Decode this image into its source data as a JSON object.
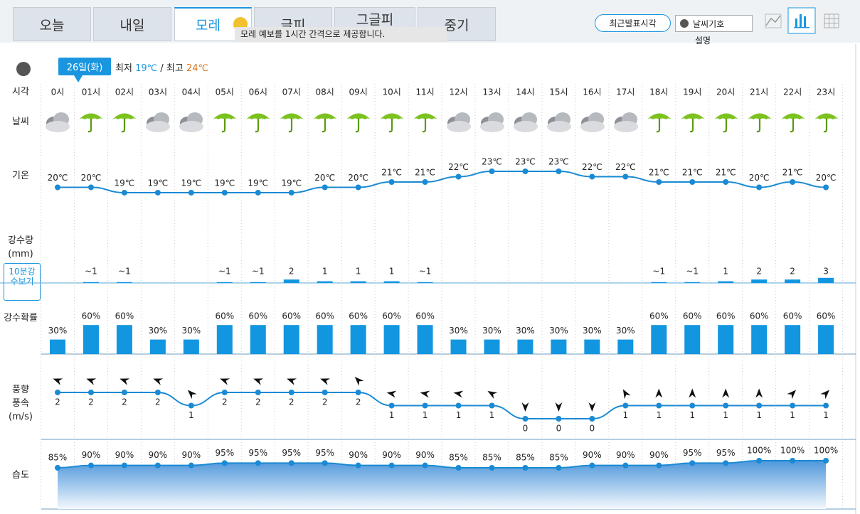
{
  "tabs": [
    "오늘",
    "내일",
    "모레",
    "글피",
    "그글피",
    "중기"
  ],
  "tooltip": "모레 예보를 1시간 간격으로 제공합니다.",
  "buttons": {
    "latest": "최근발표시각",
    "symbols": "날씨기호",
    "description": "설명"
  },
  "date": {
    "badge": "26일(화)",
    "min_label": "최저",
    "min": "19℃",
    "separator": "/",
    "max_label": "최고",
    "max": "24℃"
  },
  "row_labels": {
    "time": "시각",
    "weather": "날씨",
    "temp": "기온",
    "precip": "강수량\n(mm)",
    "precip_button": "10분강수보기",
    "prob": "강수확률",
    "wind": "풍향\n풍속\n(m/s)",
    "humidity": "습도"
  },
  "hourly": {
    "hours": [
      "0시",
      "01시",
      "02시",
      "03시",
      "04시",
      "05시",
      "06시",
      "07시",
      "08시",
      "09시",
      "10시",
      "11시",
      "12시",
      "13시",
      "14시",
      "15시",
      "16시",
      "17시",
      "18시",
      "19시",
      "20시",
      "21시",
      "22시",
      "23시"
    ],
    "temp": {
      "values": [
        20,
        20,
        19,
        19,
        19,
        19,
        19,
        19,
        20,
        20,
        21,
        21,
        22,
        23,
        23,
        23,
        22,
        22,
        21,
        21,
        21,
        20,
        21,
        20
      ],
      "value_labels": [
        "20℃",
        "20℃",
        "19℃",
        "19℃",
        "19℃",
        "19℃",
        "19℃",
        "19℃",
        "20℃",
        "20℃",
        "21℃",
        "21℃",
        "22℃",
        "23℃",
        "23℃",
        "23℃",
        "22℃",
        "22℃",
        "21℃",
        "21℃",
        "21℃",
        "20℃",
        "21℃",
        "20℃"
      ]
    },
    "precip": {
      "values": [
        null,
        0.5,
        0.5,
        null,
        null,
        0.5,
        0.5,
        2,
        1,
        1,
        1,
        0.5,
        null,
        null,
        null,
        null,
        null,
        null,
        0.5,
        0.5,
        1,
        2,
        2,
        3
      ],
      "value_labels": [
        null,
        "~1",
        "~1",
        null,
        null,
        "~1",
        "~1",
        "2",
        "1",
        "1",
        "1",
        "~1",
        null,
        null,
        null,
        null,
        null,
        null,
        "~1",
        "~1",
        "1",
        "2",
        "2",
        "3"
      ]
    },
    "prob": {
      "values": [
        30,
        60,
        60,
        30,
        30,
        60,
        60,
        60,
        60,
        60,
        60,
        60,
        30,
        30,
        30,
        30,
        30,
        30,
        60,
        60,
        60,
        60,
        60,
        60
      ],
      "value_labels": [
        "30%",
        "60%",
        "60%",
        "30%",
        "30%",
        "60%",
        "60%",
        "60%",
        "60%",
        "60%",
        "60%",
        "60%",
        "30%",
        "30%",
        "30%",
        "30%",
        "30%",
        "30%",
        "60%",
        "60%",
        "60%",
        "60%",
        "60%",
        "60%"
      ]
    },
    "wind": {
      "direction": [
        290,
        290,
        290,
        290,
        315,
        290,
        290,
        290,
        290,
        315,
        280,
        280,
        280,
        300,
        180,
        180,
        180,
        330,
        0,
        0,
        0,
        0,
        45,
        45
      ],
      "speed": [
        2,
        2,
        2,
        2,
        1,
        2,
        2,
        2,
        2,
        2,
        1,
        1,
        1,
        1,
        0,
        0,
        0,
        1,
        1,
        1,
        1,
        1,
        1,
        1
      ]
    },
    "humidity": {
      "values": [
        85,
        90,
        90,
        90,
        90,
        95,
        95,
        95,
        95,
        90,
        90,
        90,
        85,
        85,
        85,
        85,
        90,
        90,
        90,
        95,
        95,
        100,
        100,
        100
      ],
      "value_labels": [
        "85%",
        "90%",
        "90%",
        "90%",
        "90%",
        "95%",
        "95%",
        "95%",
        "95%",
        "90%",
        "90%",
        "90%",
        "85%",
        "85%",
        "85%",
        "85%",
        "90%",
        "90%",
        "90%",
        "95%",
        "95%",
        "100%",
        "100%",
        "100%"
      ]
    }
  }
}
